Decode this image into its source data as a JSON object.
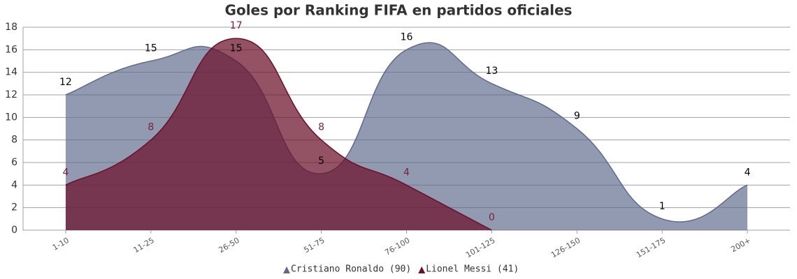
{
  "chart_data": {
    "type": "areaspline",
    "title": "Goles por Ranking FIFA en partidos oficiales",
    "categories": [
      "1-10",
      "11-25",
      "26-50",
      "51-75",
      "76-100",
      "101-125",
      "126-150",
      "151-175",
      "200+"
    ],
    "series": [
      {
        "name": "Cristiano Ronaldo (90)",
        "color": "#5f6a8c",
        "label_color": "#000000",
        "values": [
          12,
          15,
          15,
          5,
          16,
          13,
          9,
          1,
          4
        ]
      },
      {
        "name": "Lionel Messi (41)",
        "color": "#6b0f2a",
        "label_color": "#7a1f3a",
        "values": [
          4,
          8,
          17,
          8,
          4,
          0,
          null,
          null,
          null
        ]
      }
    ],
    "ylim": [
      0,
      18
    ],
    "yticks": [
      0,
      2,
      4,
      6,
      8,
      10,
      12,
      14,
      16,
      18
    ],
    "grid": true
  }
}
